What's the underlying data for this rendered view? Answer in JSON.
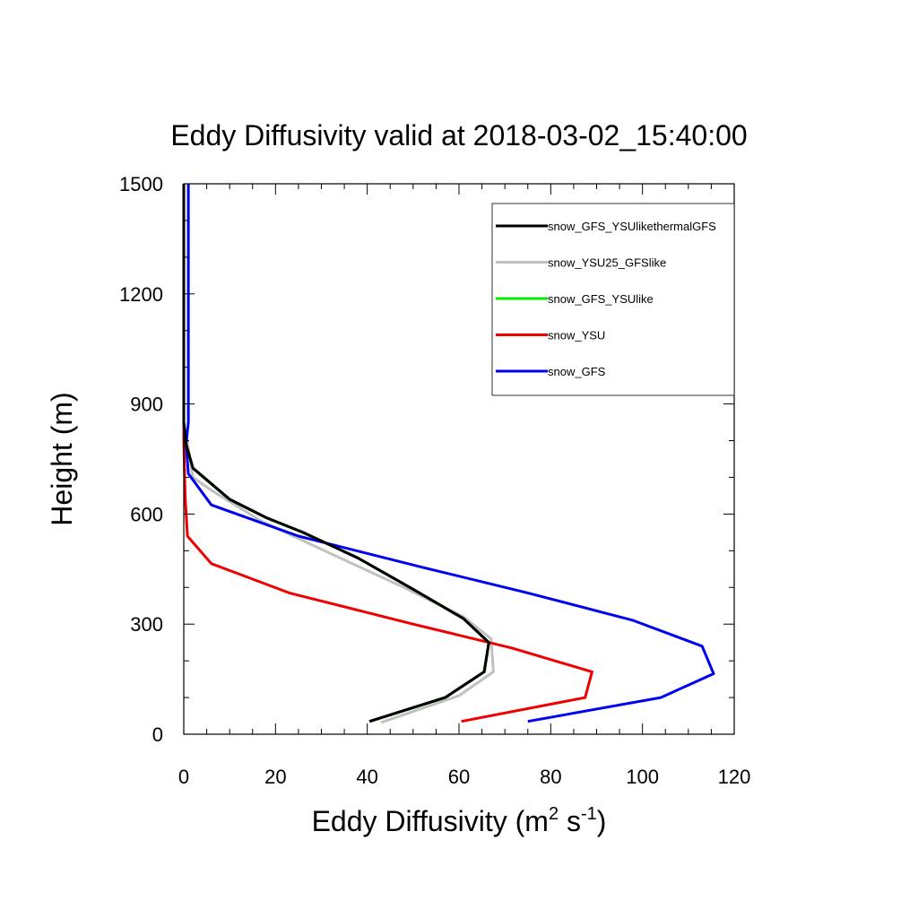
{
  "chart_data": {
    "type": "line",
    "title": "Eddy Diffusivity valid at 2018-03-02_15:40:00",
    "xlabel": {
      "main": "Eddy Diffusivity (m",
      "sup1": "2",
      "mid": " s",
      "sup2": "-1",
      "end": ")"
    },
    "ylabel": "Height (m)",
    "xlim": [
      0,
      120
    ],
    "ylim": [
      0,
      1500
    ],
    "xticks": [
      0,
      20,
      40,
      60,
      80,
      100,
      120
    ],
    "yticks": [
      0,
      300,
      600,
      900,
      1200,
      1500
    ],
    "grid": false,
    "legend_position": "top-right",
    "series": [
      {
        "name": "snow_GFS_YSUlikethermalGFS",
        "color": "#000000",
        "points": [
          [
            40.5,
            35
          ],
          [
            57,
            100
          ],
          [
            65.5,
            170
          ],
          [
            66.5,
            250
          ],
          [
            61,
            315
          ],
          [
            50,
            395
          ],
          [
            38,
            480
          ],
          [
            26,
            550
          ],
          [
            18,
            590
          ],
          [
            10,
            640
          ],
          [
            2,
            725
          ],
          [
            0.5,
            790
          ],
          [
            0,
            850
          ],
          [
            0,
            1500
          ]
        ]
      },
      {
        "name": "snow_YSU25_GFSlike",
        "color": "#c0c0c0",
        "points": [
          [
            43,
            32
          ],
          [
            60,
            105
          ],
          [
            67.5,
            170
          ],
          [
            67,
            260
          ],
          [
            61,
            320
          ],
          [
            48,
            400
          ],
          [
            35,
            475
          ],
          [
            17,
            580
          ],
          [
            6,
            665
          ],
          [
            2,
            700
          ],
          [
            1,
            780
          ],
          [
            0,
            850
          ],
          [
            0,
            1500
          ]
        ]
      },
      {
        "name": "snow_GFS_YSUlike",
        "color": "#00ee00",
        "points": [
          [
            40.5,
            35
          ],
          [
            57,
            100
          ],
          [
            65.5,
            170
          ],
          [
            66.5,
            250
          ],
          [
            61,
            315
          ],
          [
            50,
            395
          ],
          [
            38,
            480
          ],
          [
            26,
            550
          ],
          [
            18,
            590
          ],
          [
            10,
            640
          ],
          [
            2,
            725
          ],
          [
            0.5,
            790
          ],
          [
            0,
            850
          ],
          [
            0,
            1500
          ]
        ]
      },
      {
        "name": "snow_YSU",
        "color": "#ee0000",
        "points": [
          [
            60.5,
            35
          ],
          [
            87.5,
            100
          ],
          [
            89,
            170
          ],
          [
            71.5,
            235
          ],
          [
            50,
            300
          ],
          [
            23,
            385
          ],
          [
            6,
            465
          ],
          [
            0.8,
            540
          ],
          [
            0.3,
            650
          ],
          [
            0,
            800
          ],
          [
            0,
            1500
          ]
        ]
      },
      {
        "name": "snow_GFS",
        "color": "#0000ee",
        "points": [
          [
            75,
            35
          ],
          [
            104,
            100
          ],
          [
            115.5,
            165
          ],
          [
            113,
            240
          ],
          [
            98,
            310
          ],
          [
            75,
            385
          ],
          [
            52,
            455
          ],
          [
            25,
            540
          ],
          [
            6,
            625
          ],
          [
            1,
            710
          ],
          [
            0.5,
            790
          ],
          [
            1,
            850
          ],
          [
            1,
            1500
          ]
        ]
      }
    ]
  }
}
